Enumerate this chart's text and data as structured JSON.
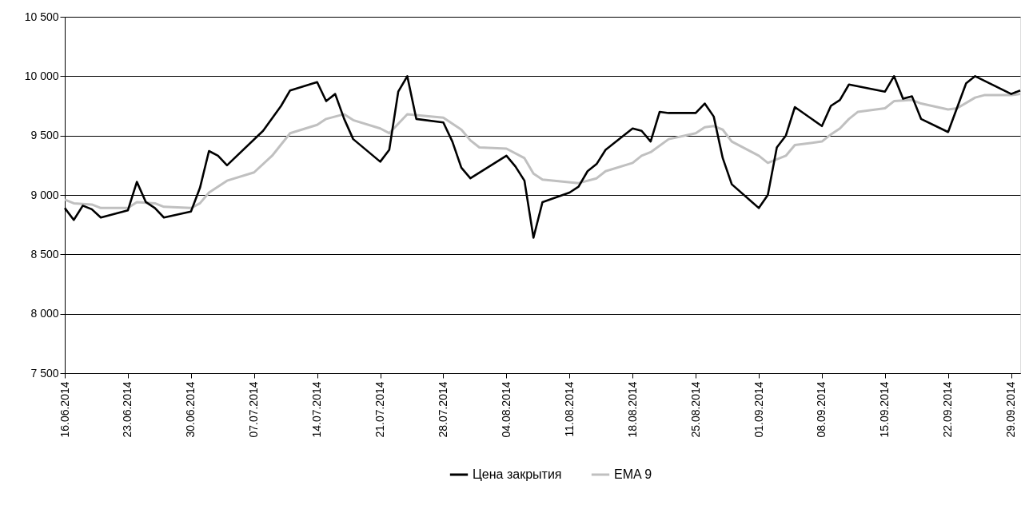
{
  "chart_data": {
    "type": "line",
    "xlim": [
      "2014-06-16",
      "2014-09-30"
    ],
    "xticks": [
      {
        "value": "2014-06-16",
        "label": "16.06.2014"
      },
      {
        "value": "2014-06-23",
        "label": "23.06.2014"
      },
      {
        "value": "2014-06-30",
        "label": "30.06.2014"
      },
      {
        "value": "2014-07-07",
        "label": "07.07.2014"
      },
      {
        "value": "2014-07-14",
        "label": "14.07.2014"
      },
      {
        "value": "2014-07-21",
        "label": "21.07.2014"
      },
      {
        "value": "2014-07-28",
        "label": "28.07.2014"
      },
      {
        "value": "2014-08-04",
        "label": "04.08.2014"
      },
      {
        "value": "2014-08-11",
        "label": "11.08.2014"
      },
      {
        "value": "2014-08-18",
        "label": "18.08.2014"
      },
      {
        "value": "2014-08-25",
        "label": "25.08.2014"
      },
      {
        "value": "2014-09-01",
        "label": "01.09.2014"
      },
      {
        "value": "2014-09-08",
        "label": "08.09.2014"
      },
      {
        "value": "2014-09-15",
        "label": "15.09.2014"
      },
      {
        "value": "2014-09-22",
        "label": "22.09.2014"
      },
      {
        "value": "2014-09-29",
        "label": "29.09.2014"
      }
    ],
    "ylim": [
      7500,
      10500
    ],
    "yticks": [
      {
        "value": 7500,
        "label": "7 500"
      },
      {
        "value": 8000,
        "label": "8 000"
      },
      {
        "value": 8500,
        "label": "8 500"
      },
      {
        "value": 9000,
        "label": "9 000"
      },
      {
        "value": 9500,
        "label": "9 500"
      },
      {
        "value": 10000,
        "label": "10 000"
      },
      {
        "value": 10500,
        "label": "10 500"
      }
    ],
    "grid": "y",
    "legend": "bottom",
    "line_style": "solid",
    "marker": "none",
    "series": [
      {
        "name": "Цена закрытия",
        "color": "#000000",
        "x": [
          "2014-06-16",
          "2014-06-17",
          "2014-06-18",
          "2014-06-19",
          "2014-06-20",
          "2014-06-23",
          "2014-06-24",
          "2014-06-25",
          "2014-06-26",
          "2014-06-27",
          "2014-06-30",
          "2014-07-01",
          "2014-07-02",
          "2014-07-03",
          "2014-07-04",
          "2014-07-08",
          "2014-07-10",
          "2014-07-11",
          "2014-07-14",
          "2014-07-15",
          "2014-07-16",
          "2014-07-17",
          "2014-07-18",
          "2014-07-21",
          "2014-07-22",
          "2014-07-23",
          "2014-07-24",
          "2014-07-25",
          "2014-07-28",
          "2014-07-29",
          "2014-07-30",
          "2014-07-31",
          "2014-08-04",
          "2014-08-05",
          "2014-08-06",
          "2014-08-07",
          "2014-08-08",
          "2014-08-11",
          "2014-08-12",
          "2014-08-13",
          "2014-08-14",
          "2014-08-15",
          "2014-08-18",
          "2014-08-19",
          "2014-08-20",
          "2014-08-21",
          "2014-08-22",
          "2014-08-25",
          "2014-08-26",
          "2014-08-27",
          "2014-08-28",
          "2014-08-29",
          "2014-09-01",
          "2014-09-02",
          "2014-09-03",
          "2014-09-04",
          "2014-09-05",
          "2014-09-08",
          "2014-09-09",
          "2014-09-10",
          "2014-09-11",
          "2014-09-15",
          "2014-09-16",
          "2014-09-17",
          "2014-09-18",
          "2014-09-19",
          "2014-09-22",
          "2014-09-24",
          "2014-09-25",
          "2014-09-29",
          "2014-09-30"
        ],
        "values": [
          8890,
          8790,
          8910,
          8880,
          8810,
          8870,
          9110,
          8940,
          8890,
          8810,
          8860,
          9060,
          9370,
          9330,
          9250,
          9540,
          9750,
          9880,
          9950,
          9790,
          9850,
          9640,
          9470,
          9280,
          9380,
          9870,
          10000,
          9640,
          9610,
          9450,
          9230,
          9140,
          9330,
          9240,
          9120,
          8640,
          8940,
          9020,
          9070,
          9200,
          9260,
          9380,
          9560,
          9540,
          9450,
          9700,
          9690,
          9690,
          9770,
          9660,
          9310,
          9090,
          8890,
          9000,
          9400,
          9500,
          9740,
          9580,
          9750,
          9800,
          9930,
          9870,
          10000,
          9810,
          9830,
          9640,
          9530,
          9940,
          10000,
          9850,
          9880
        ]
      },
      {
        "name": "EMA 9",
        "color": "#c0c0c0",
        "x": [
          "2014-06-16",
          "2014-06-17",
          "2014-06-19",
          "2014-06-20",
          "2014-06-23",
          "2014-06-24",
          "2014-06-26",
          "2014-06-27",
          "2014-06-30",
          "2014-07-01",
          "2014-07-02",
          "2014-07-04",
          "2014-07-07",
          "2014-07-09",
          "2014-07-11",
          "2014-07-14",
          "2014-07-15",
          "2014-07-17",
          "2014-07-18",
          "2014-07-21",
          "2014-07-22",
          "2014-07-24",
          "2014-07-28",
          "2014-07-30",
          "2014-07-31",
          "2014-08-01",
          "2014-08-04",
          "2014-08-06",
          "2014-08-07",
          "2014-08-08",
          "2014-08-12",
          "2014-08-14",
          "2014-08-15",
          "2014-08-18",
          "2014-08-19",
          "2014-08-20",
          "2014-08-22",
          "2014-08-25",
          "2014-08-26",
          "2014-08-27",
          "2014-08-28",
          "2014-08-29",
          "2014-09-01",
          "2014-09-02",
          "2014-09-04",
          "2014-09-05",
          "2014-09-08",
          "2014-09-09",
          "2014-09-10",
          "2014-09-11",
          "2014-09-12",
          "2014-09-15",
          "2014-09-16",
          "2014-09-18",
          "2014-09-19",
          "2014-09-22",
          "2014-09-23",
          "2014-09-25",
          "2014-09-26",
          "2014-09-29",
          "2014-09-30"
        ],
        "values": [
          8960,
          8930,
          8920,
          8890,
          8890,
          8940,
          8930,
          8900,
          8890,
          8930,
          9020,
          9120,
          9190,
          9330,
          9520,
          9590,
          9640,
          9680,
          9630,
          9560,
          9520,
          9680,
          9650,
          9550,
          9460,
          9400,
          9390,
          9310,
          9180,
          9130,
          9100,
          9140,
          9200,
          9270,
          9330,
          9360,
          9470,
          9520,
          9570,
          9580,
          9550,
          9450,
          9330,
          9270,
          9330,
          9420,
          9450,
          9510,
          9560,
          9640,
          9700,
          9730,
          9790,
          9800,
          9770,
          9720,
          9730,
          9820,
          9840,
          9840,
          9850
        ]
      }
    ]
  }
}
